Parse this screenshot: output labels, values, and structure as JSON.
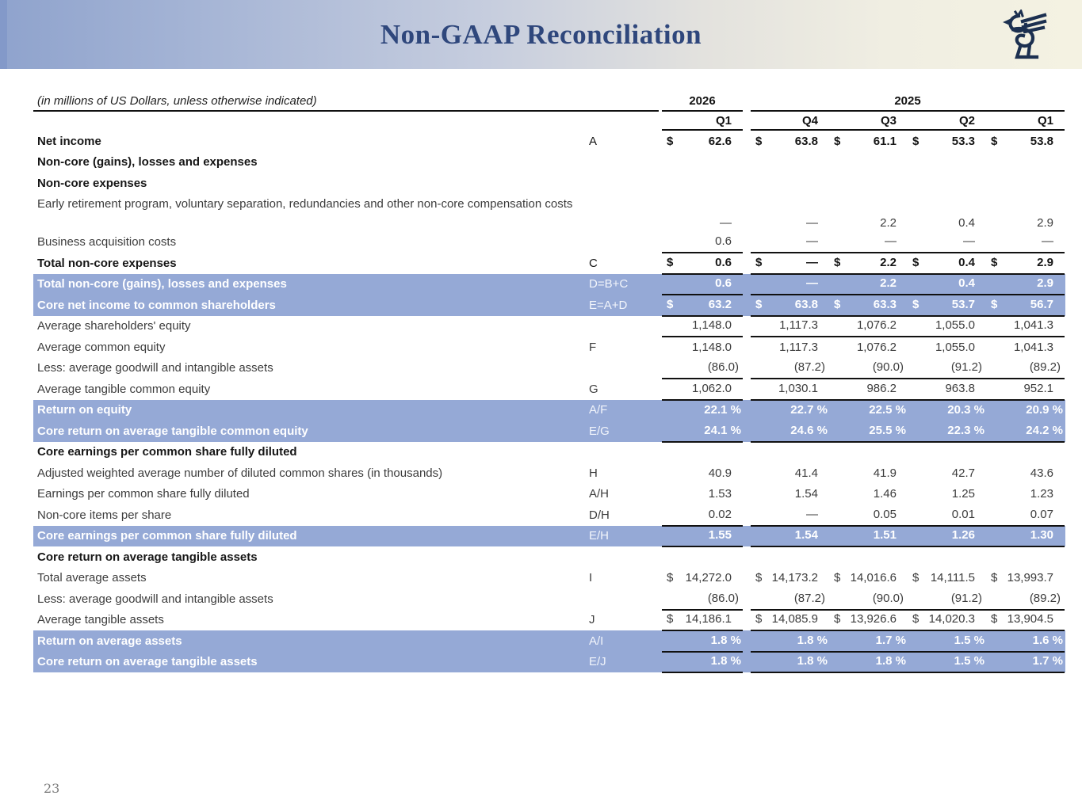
{
  "slide": {
    "title": "Non-GAAP Reconciliation",
    "page_number": "23"
  },
  "icons": {
    "logo": "griffin-logo"
  },
  "colors": {
    "highlight_row": "#95a9d6",
    "title_text": "#2f477c",
    "logo_navy": "#1c3050",
    "header_gradient_left": "#8fa3cd",
    "header_gradient_right": "#f4f2e2",
    "rule_black": "#111111"
  },
  "table": {
    "units_note": "(in millions of US Dollars, unless otherwise indicated)",
    "year_groups": [
      {
        "label": "2026",
        "quarters": [
          "Q1"
        ]
      },
      {
        "label": "2025",
        "quarters": [
          "Q4",
          "Q3",
          "Q2",
          "Q1"
        ]
      }
    ],
    "rows": [
      {
        "label": "Net income",
        "ref": "A",
        "dollar": true,
        "bold": true,
        "values": [
          "62.6",
          "63.8",
          "61.1",
          "53.3",
          "53.8"
        ]
      },
      {
        "label": "Non-core (gains), losses and expenses",
        "section": true
      },
      {
        "label": "Non-core expenses",
        "section": true
      },
      {
        "label": "Early retirement program, voluntary separation, redundancies and other non-core compensation costs",
        "tall": true,
        "values": [
          "—",
          "—",
          "2.2",
          "0.4",
          "2.9"
        ]
      },
      {
        "label": "Business acquisition costs",
        "bb": true,
        "values": [
          "0.6",
          "—",
          "—",
          "—",
          "—"
        ]
      },
      {
        "label": "Total non-core expenses",
        "ref": "C",
        "dollar": true,
        "bold": true,
        "bb": true,
        "values": [
          "0.6",
          "—",
          "2.2",
          "0.4",
          "2.9"
        ]
      },
      {
        "label": "Total non-core (gains), losses and expenses",
        "ref": "D=B+C",
        "highlight": true,
        "bb": true,
        "values": [
          "0.6",
          "—",
          "2.2",
          "0.4",
          "2.9"
        ]
      },
      {
        "label": "Core net income to common shareholders",
        "ref": "E=A+D",
        "highlight": true,
        "dollar": true,
        "bb": true,
        "values": [
          "63.2",
          "63.8",
          "63.3",
          "53.7",
          "56.7"
        ]
      },
      {
        "label": "Average shareholders' equity",
        "bb": true,
        "values": [
          "1,148.0",
          "1,117.3",
          "1,076.2",
          "1,055.0",
          "1,041.3"
        ]
      },
      {
        "label": "Average common equity",
        "ref": "F",
        "values": [
          "1,148.0",
          "1,117.3",
          "1,076.2",
          "1,055.0",
          "1,041.3"
        ]
      },
      {
        "label": "Less: average goodwill and intangible assets",
        "bb": true,
        "values": [
          "(86.0)",
          "(87.2)",
          "(90.0)",
          "(91.2)",
          "(89.2)"
        ]
      },
      {
        "label": "Average tangible common equity",
        "ref": "G",
        "bb": true,
        "values": [
          "1,062.0",
          "1,030.1",
          "986.2",
          "963.8",
          "952.1"
        ]
      },
      {
        "label": "Return on equity",
        "ref": "A/F",
        "highlight": true,
        "values": [
          "22.1 %",
          "22.7 %",
          "22.5 %",
          "20.3 %",
          "20.9 %"
        ]
      },
      {
        "label": "Core return on average tangible common equity",
        "ref": "E/G",
        "highlight": true,
        "bb": true,
        "values": [
          "24.1 %",
          "24.6 %",
          "25.5 %",
          "22.3 %",
          "24.2 %"
        ]
      },
      {
        "label": "Core earnings per common share fully diluted",
        "section": true
      },
      {
        "label": "Adjusted weighted average number of diluted common shares (in thousands)",
        "ref": "H",
        "values": [
          "40.9",
          "41.4",
          "41.9",
          "42.7",
          "43.6"
        ]
      },
      {
        "label": "Earnings per common share fully diluted",
        "ref": "A/H",
        "values": [
          "1.53",
          "1.54",
          "1.46",
          "1.25",
          "1.23"
        ]
      },
      {
        "label": "Non-core items per share",
        "ref": "D/H",
        "bb": true,
        "values": [
          "0.02",
          "—",
          "0.05",
          "0.01",
          "0.07"
        ]
      },
      {
        "label": "Core earnings per common share fully diluted",
        "ref": "E/H",
        "highlight": true,
        "bb": true,
        "values": [
          "1.55",
          "1.54",
          "1.51",
          "1.26",
          "1.30"
        ]
      },
      {
        "label": "Core return on average tangible assets",
        "section": true
      },
      {
        "label": "Total average assets",
        "ref": "I",
        "dollar": true,
        "values": [
          "14,272.0",
          "14,173.2",
          "14,016.6",
          "14,111.5",
          "13,993.7"
        ]
      },
      {
        "label": "Less: average goodwill and intangible assets",
        "bb": true,
        "values": [
          "(86.0)",
          "(87.2)",
          "(90.0)",
          "(91.2)",
          "(89.2)"
        ]
      },
      {
        "label": "Average tangible assets",
        "ref": "J",
        "dollar": true,
        "bb": true,
        "values": [
          "14,186.1",
          "14,085.9",
          "13,926.6",
          "14,020.3",
          "13,904.5"
        ]
      },
      {
        "label": "Return on average assets",
        "ref": "A/I",
        "highlight": true,
        "bb": true,
        "values": [
          "1.8 %",
          "1.8 %",
          "1.7 %",
          "1.5 %",
          "1.6 %"
        ]
      },
      {
        "label": "Core return on average tangible assets",
        "ref": "E/J",
        "highlight": true,
        "bb": true,
        "values": [
          "1.8 %",
          "1.8 %",
          "1.8 %",
          "1.5 %",
          "1.7 %"
        ]
      }
    ]
  }
}
